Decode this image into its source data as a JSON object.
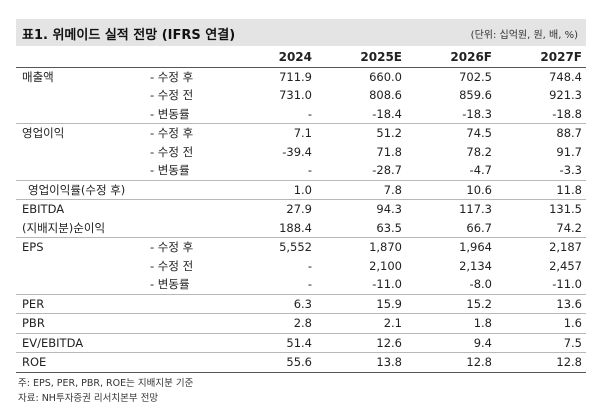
{
  "header": {
    "title": "표1. 위메이드 실적 전망 (IFRS 연결)",
    "unit": "(단위: 십억원, 원, 배, %)"
  },
  "columns": [
    "2024",
    "2025E",
    "2026F",
    "2027F"
  ],
  "rows": [
    {
      "metric": "매출액",
      "sub": "- 수정 후",
      "values": [
        "711.9",
        "660.0",
        "702.5",
        "748.4"
      ]
    },
    {
      "metric": "",
      "sub": "- 수정 전",
      "values": [
        "731.0",
        "808.6",
        "859.6",
        "921.3"
      ]
    },
    {
      "metric": "",
      "sub": "- 변동률",
      "values": [
        "-",
        "-18.4",
        "-18.3",
        "-18.8"
      ]
    },
    {
      "metric": "영업이익",
      "sub": "- 수정 후",
      "values": [
        "7.1",
        "51.2",
        "74.5",
        "88.7"
      ]
    },
    {
      "metric": "",
      "sub": "- 수정 전",
      "values": [
        "-39.4",
        "71.8",
        "78.2",
        "91.7"
      ]
    },
    {
      "metric": "",
      "sub": "- 변동률",
      "values": [
        "-",
        "-28.7",
        "-4.7",
        "-3.3"
      ]
    },
    {
      "metric": "영업이익률(수정 후)",
      "sub": "",
      "values": [
        "1.0",
        "7.8",
        "10.6",
        "11.8"
      ]
    },
    {
      "metric": "EBITDA",
      "sub": "",
      "values": [
        "27.9",
        "94.3",
        "117.3",
        "131.5"
      ]
    },
    {
      "metric": "(지배지분)순이익",
      "sub": "",
      "values": [
        "188.4",
        "63.5",
        "66.7",
        "74.2"
      ]
    },
    {
      "metric": "EPS",
      "sub": "- 수정 후",
      "values": [
        "5,552",
        "1,870",
        "1,964",
        "2,187"
      ]
    },
    {
      "metric": "",
      "sub": "- 수정 전",
      "values": [
        "-",
        "2,100",
        "2,134",
        "2,457"
      ]
    },
    {
      "metric": "",
      "sub": "- 변동률",
      "values": [
        "-",
        "-11.0",
        "-8.0",
        "-11.0"
      ]
    },
    {
      "metric": "PER",
      "sub": "",
      "values": [
        "6.3",
        "15.9",
        "15.2",
        "13.6"
      ]
    },
    {
      "metric": "PBR",
      "sub": "",
      "values": [
        "2.8",
        "2.1",
        "1.8",
        "1.6"
      ]
    },
    {
      "metric": "EV/EBITDA",
      "sub": "",
      "values": [
        "51.4",
        "12.6",
        "9.4",
        "7.5"
      ]
    },
    {
      "metric": "ROE",
      "sub": "",
      "values": [
        "55.6",
        "13.8",
        "12.8",
        "12.8"
      ]
    }
  ],
  "notes": [
    "주: EPS, PER, PBR, ROE는 지배지분 기준",
    "자료: NH투자증권 리서치본부 전망"
  ]
}
